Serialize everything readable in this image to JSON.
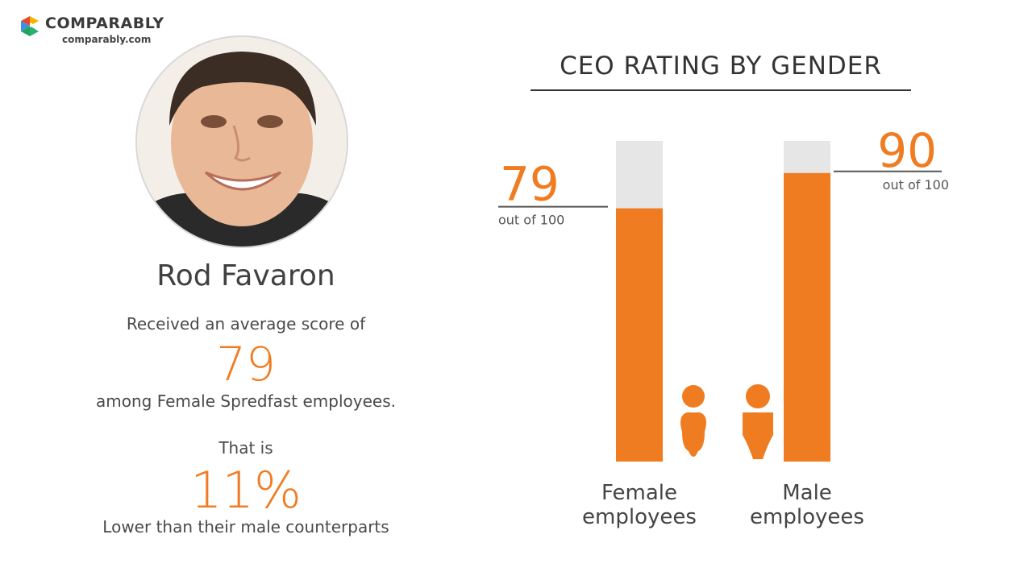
{
  "brand": {
    "name": "COMPARABLY",
    "url": "comparably.com",
    "colors": [
      "#f4b400",
      "#e8472b",
      "#3c91e6",
      "#2ab06f"
    ]
  },
  "profile": {
    "name": "Rod Favaron",
    "line1": "Received an average score of",
    "score": "79",
    "line2": "among Female Spredfast employees.",
    "line3": "That is",
    "difference": "11%",
    "line4": "Lower than their male counterparts"
  },
  "colors": {
    "accent": "#f07c22",
    "track": "#e6e6e6",
    "text": "#444444"
  },
  "chart_data": {
    "type": "bar",
    "title": "CEO RATING BY GENDER",
    "categories": [
      "Female employees",
      "Male employees"
    ],
    "category_lines": [
      [
        "Female",
        "employees"
      ],
      [
        "Male",
        "employees"
      ]
    ],
    "values": [
      79,
      90
    ],
    "value_labels": [
      "79",
      "90"
    ],
    "sublabel": "out of 100",
    "ylim": [
      0,
      100
    ],
    "icons": [
      "female-person-icon",
      "male-person-icon"
    ]
  }
}
